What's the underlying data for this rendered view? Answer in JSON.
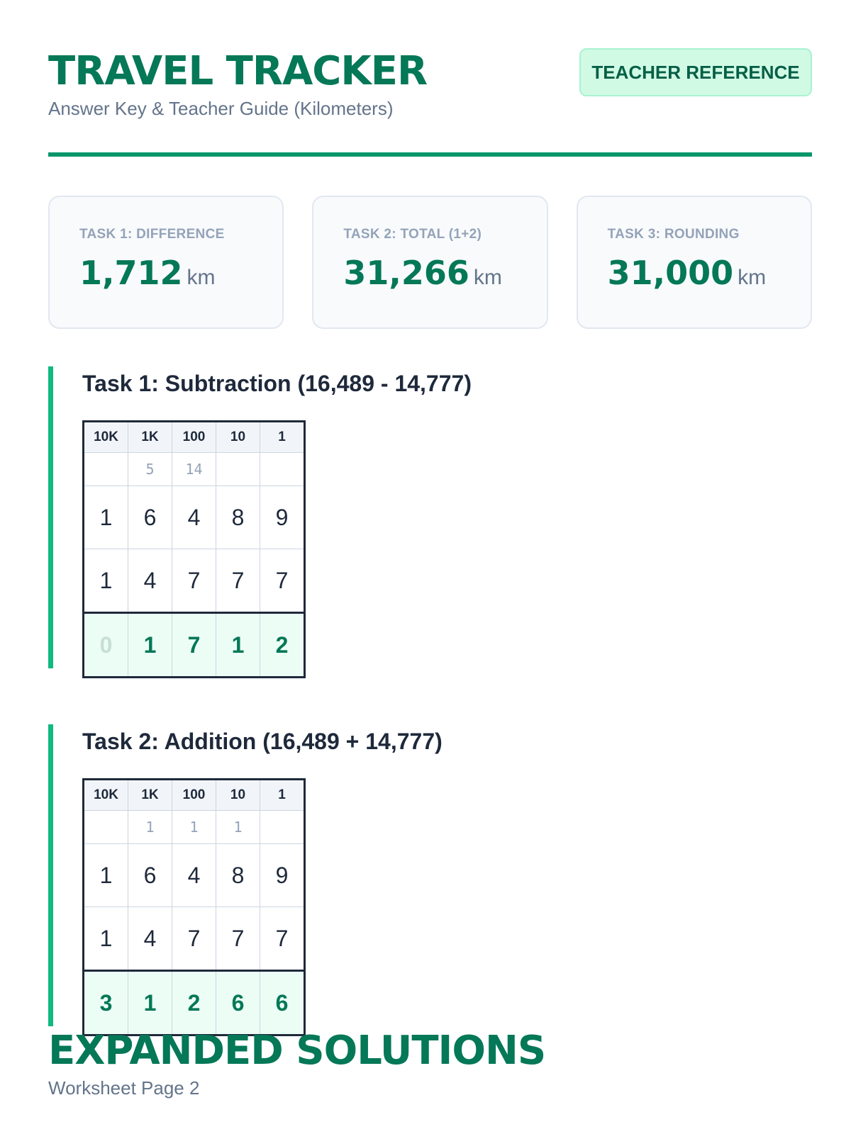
{
  "header": {
    "title": "TRAVEL TRACKER",
    "subtitle": "Answer Key & Teacher Guide (Kilometers)",
    "badge": "TEACHER REFERENCE"
  },
  "summary": [
    {
      "label": "TASK 1: DIFFERENCE",
      "value": "1,712",
      "unit": "km"
    },
    {
      "label": "TASK 2: TOTAL (1+2)",
      "value": "31,266",
      "unit": "km"
    },
    {
      "label": "TASK 3: ROUNDING",
      "value": "31,000",
      "unit": "km"
    }
  ],
  "columns": [
    "10K",
    "1K",
    "100",
    "10",
    "1"
  ],
  "tasks": [
    {
      "title": "Task 1: Subtraction (16,489 - 14,777)",
      "carry": [
        "",
        "5",
        "14",
        "",
        ""
      ],
      "top": [
        "1",
        "6",
        "4",
        "8",
        "9"
      ],
      "bottom": [
        "1",
        "4",
        "7",
        "7",
        "7"
      ],
      "answer": [
        "0",
        "1",
        "7",
        "1",
        "2"
      ]
    },
    {
      "title": "Task 2: Addition (16,489 + 14,777)",
      "carry": [
        "",
        "1",
        "1",
        "1",
        ""
      ],
      "top": [
        "1",
        "6",
        "4",
        "8",
        "9"
      ],
      "bottom": [
        "1",
        "4",
        "7",
        "7",
        "7"
      ],
      "answer": [
        "3",
        "1",
        "2",
        "6",
        "6"
      ]
    }
  ],
  "footer": {
    "title": "EXPANDED SOLUTIONS",
    "subtitle": "Worksheet Page 2"
  }
}
